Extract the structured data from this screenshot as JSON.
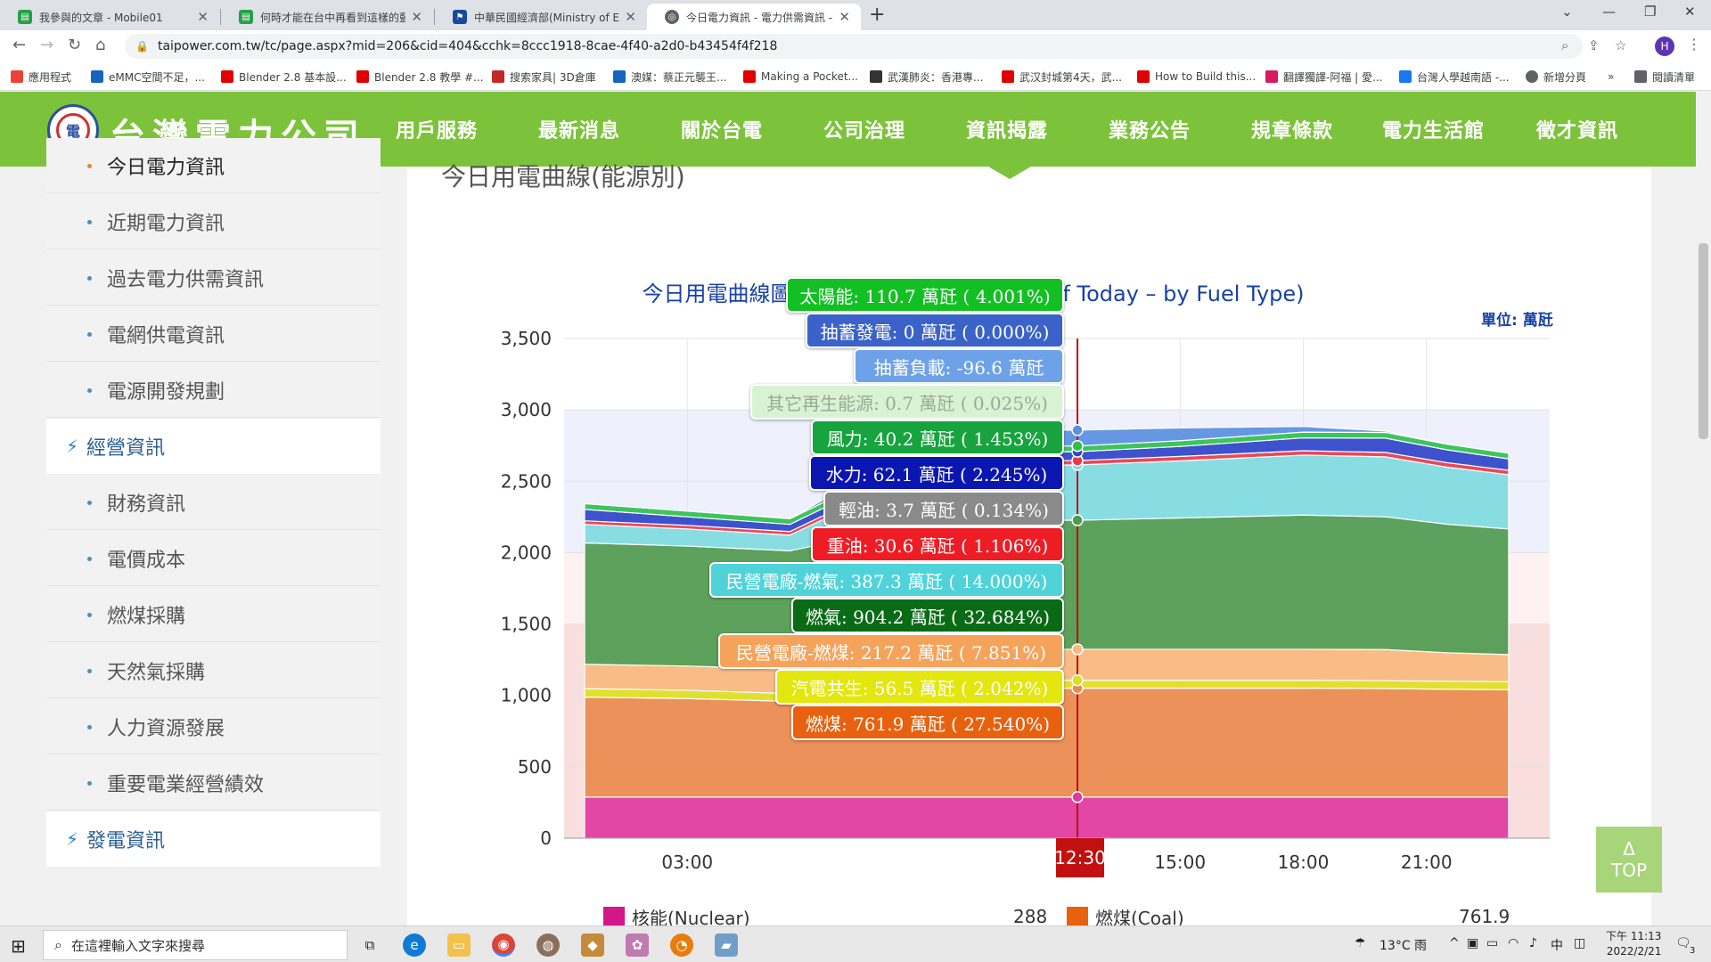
{
  "browser": {
    "tabs": [
      {
        "label": "我參與的文章 - Mobile01",
        "icon_color": "#25a244",
        "icon": "doc-icon"
      },
      {
        "label": "何時才能在台中再看到這樣的藍天",
        "icon_color": "#25a244",
        "icon": "doc-icon"
      },
      {
        "label": "中華民國經濟部(Ministry of Eco",
        "icon_color": "#1a4aa0",
        "icon": "flag-icon"
      },
      {
        "label": "今日電力資訊 - 電力供需資訊 - 資",
        "icon_color": "#5f6368",
        "icon": "globe-icon"
      }
    ],
    "url": "taipower.com.tw/tc/page.aspx?mid=206&cid=404&cchk=8ccc1918-8cae-4f40-a2d0-b43454f4f218",
    "profile_initial": "H",
    "bookmarks": [
      {
        "label": "應用程式",
        "color": "#ea4335"
      },
      {
        "label": "eMMC空間不足，...",
        "color": "#1565c0"
      },
      {
        "label": "Blender 2.8 基本設...",
        "color": "#e00000"
      },
      {
        "label": "Blender 2.8 教學 #...",
        "color": "#e00000"
      },
      {
        "label": "搜索家具| 3D倉庫",
        "color": "#c62828"
      },
      {
        "label": "澳媒：蔡正元襲王...",
        "color": "#1565c0"
      },
      {
        "label": "Making a Pocket...",
        "color": "#e00000"
      },
      {
        "label": "武漢肺炎：香港專...",
        "color": "#333333"
      },
      {
        "label": "武汉封城第4天，武...",
        "color": "#e00000"
      },
      {
        "label": "How to Build this...",
        "color": "#e00000"
      },
      {
        "label": "翻譯獨譯-阿福 | 愛...",
        "color": "#d81b60"
      },
      {
        "label": "台灣人學越南語 -...",
        "color": "#1877f2"
      },
      {
        "label": "新增分頁",
        "color": "#5f6368"
      },
      {
        "label": "閱讀清單",
        "color": "#5f6368"
      }
    ]
  },
  "site": {
    "logo_text": "台灣電力公司",
    "nav": [
      "用戶服務",
      "最新消息",
      "關於台電",
      "公司治理",
      "資訊揭露",
      "業務公告",
      "規章條款",
      "電力生活館",
      "徵才資訊"
    ]
  },
  "sidebar": {
    "items": [
      {
        "label": "今日電力資訊",
        "type": "item",
        "current": true
      },
      {
        "label": "近期電力資訊",
        "type": "item"
      },
      {
        "label": "過去電力供需資訊",
        "type": "item"
      },
      {
        "label": "電網供電資訊",
        "type": "item"
      },
      {
        "label": "電源開發規劃",
        "type": "item"
      },
      {
        "label": "經營資訊",
        "type": "category"
      },
      {
        "label": "財務資訊",
        "type": "item"
      },
      {
        "label": "電價成本",
        "type": "item"
      },
      {
        "label": "燃煤採購",
        "type": "item"
      },
      {
        "label": "天然氣採購",
        "type": "item"
      },
      {
        "label": "人力資源發展",
        "type": "item"
      },
      {
        "label": "重要電業經營績效",
        "type": "item"
      },
      {
        "label": "發電資訊",
        "type": "category"
      }
    ]
  },
  "content": {
    "section_title": "今日用電曲線(能源別)",
    "top_label": "Δ",
    "top_text": "TOP"
  },
  "chart_data": {
    "type": "area",
    "stacked": true,
    "title": "今日用電曲線圖-依燃料類別 (Load Curve of Today – by Fuel Type)",
    "unit_label": "單位: 萬瓩",
    "ylim": [
      0,
      3500
    ],
    "yticks": [
      "3,500",
      "3,000",
      "2,500",
      "2,000",
      "1,500",
      "1,000",
      "500",
      "0"
    ],
    "xticks": [
      "03:00",
      "15:00",
      "18:00",
      "21:00"
    ],
    "hover_time": "12:30",
    "x_hours": [
      0.5,
      3.0,
      5.5,
      8.0,
      10.0,
      11.5,
      12.5,
      15.0,
      18.0,
      20.0,
      21.5,
      23.0
    ],
    "series": [
      {
        "name": "核能(Nuclear)",
        "color": "#e0399f",
        "values": [
          288,
          288,
          288,
          288,
          288,
          288,
          288,
          288,
          288,
          288,
          288,
          288
        ]
      },
      {
        "name": "燃煤(Coal)",
        "color": "#e98a4d",
        "values": [
          700,
          690,
          670,
          740,
          760,
          762,
          762,
          762,
          762,
          760,
          755,
          752
        ]
      },
      {
        "name": "汽電共生(Co-Gen)",
        "color": "#dede20",
        "values": [
          60,
          58,
          55,
          56,
          56,
          56,
          56,
          56,
          56,
          56,
          56,
          56
        ]
      },
      {
        "name": "民營電廠-燃煤(IPP-Coal)",
        "color": "#f9b87e",
        "values": [
          170,
          170,
          170,
          200,
          210,
          217,
          217,
          217,
          217,
          217,
          200,
          190
        ]
      },
      {
        "name": "燃氣(LNG)",
        "color": "#4f9a4f",
        "values": [
          850,
          840,
          830,
          880,
          900,
          904,
          904,
          920,
          940,
          930,
          900,
          880
        ]
      },
      {
        "name": "民營電廠-燃氣(IPP-LNG)",
        "color": "#7fdbe0",
        "values": [
          130,
          120,
          110,
          300,
          360,
          387,
          387,
          400,
          420,
          420,
          400,
          380
        ]
      },
      {
        "name": "重油(Oil)",
        "color": "#ea3a4a",
        "values": [
          25,
          25,
          25,
          28,
          30,
          31,
          31,
          31,
          31,
          31,
          31,
          31
        ]
      },
      {
        "name": "水力(Hydro)",
        "color": "#2e44c8",
        "values": [
          80,
          60,
          50,
          55,
          60,
          62,
          62,
          70,
          90,
          100,
          90,
          80
        ]
      },
      {
        "name": "風力(Wind)",
        "color": "#2fc04f",
        "values": [
          40,
          40,
          40,
          40,
          40,
          40,
          40,
          40,
          40,
          40,
          40,
          40
        ]
      },
      {
        "name": "太陽能(Solar)",
        "color": "#5a8fe0",
        "values": [
          0,
          0,
          0,
          60,
          100,
          111,
          111,
          90,
          40,
          10,
          0,
          0
        ]
      }
    ],
    "tooltips": [
      {
        "text": "太陽能: 110.7 萬瓩 ( 4.001%)",
        "color": "#13c023",
        "text_color": "#ffffff",
        "opacity": 1
      },
      {
        "text": "抽蓄發電: 0 萬瓩 ( 0.000%)",
        "color": "#3a62c8",
        "text_color": "#ffffff",
        "opacity": 1
      },
      {
        "text": "抽蓄負載: -96.6 萬瓩",
        "color": "#6ea2e8",
        "text_color": "#ffffff",
        "opacity": 1
      },
      {
        "text": "其它再生能源: 0.7 萬瓩 ( 0.025%)",
        "color": "#d8f3d2",
        "text_color": "#9aa89a",
        "opacity": 1
      },
      {
        "text": "風力: 40.2 萬瓩 ( 1.453%)",
        "color": "#17a33d",
        "text_color": "#ffffff",
        "opacity": 1
      },
      {
        "text": "水力: 62.1 萬瓩 ( 2.245%)",
        "color": "#0b16b0",
        "text_color": "#ffffff",
        "opacity": 1
      },
      {
        "text": "輕油: 3.7 萬瓩 ( 0.134%)",
        "color": "#8a8a8a",
        "text_color": "#ffffff",
        "opacity": 1
      },
      {
        "text": "重油: 30.6 萬瓩 ( 1.106%)",
        "color": "#ee1c25",
        "text_color": "#ffffff",
        "opacity": 1
      },
      {
        "text": "民營電廠-燃氣: 387.3 萬瓩 ( 14.000%)",
        "color": "#4fd3d9",
        "text_color": "#ffffff",
        "opacity": 1
      },
      {
        "text": "燃氣: 904.2 萬瓩 ( 32.684%)",
        "color": "#0a6b16",
        "text_color": "#ffffff",
        "opacity": 1
      },
      {
        "text": "民營電廠-燃煤: 217.2 萬瓩 ( 7.851%)",
        "color": "#f5a35b",
        "text_color": "#ffffff",
        "opacity": 1
      },
      {
        "text": "汽電共生: 56.5 萬瓩 ( 2.042%)",
        "color": "#e3e70f",
        "text_color": "#ffffff",
        "opacity": 1
      },
      {
        "text": "燃煤: 761.9 萬瓩 ( 27.540%)",
        "color": "#e8610f",
        "text_color": "#ffffff",
        "opacity": 1
      }
    ],
    "legend": [
      {
        "name": "核能(Nuclear)",
        "value": "288",
        "color": "#d4168a"
      },
      {
        "name": "燃煤(Coal)",
        "value": "761.9",
        "color": "#e8610f"
      }
    ]
  },
  "taskbar": {
    "search_placeholder": "在這裡輸入文字來搜尋",
    "weather": "13°C 雨",
    "ime": "中",
    "time": "下午 11:13",
    "date": "2022/2/21",
    "notifications": "3"
  }
}
